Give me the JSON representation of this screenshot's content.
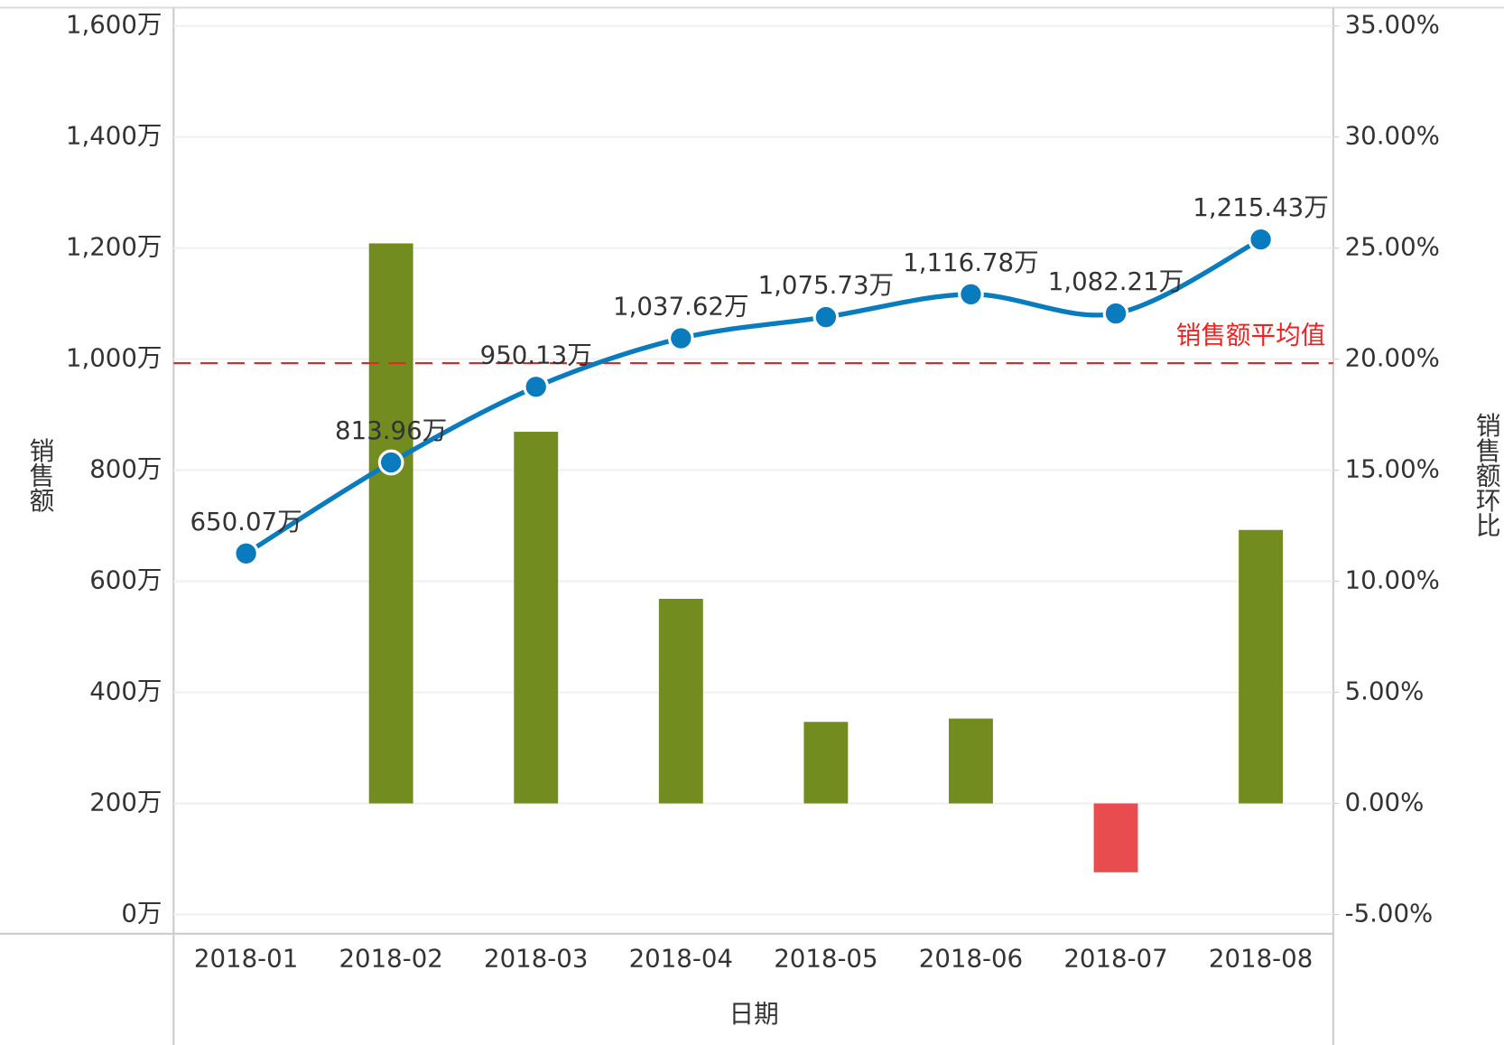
{
  "chart_data": {
    "type": "bar_line_dual_axis",
    "x_label": "日期",
    "y_label": "销售额",
    "y2_label": "销售额环比",
    "categories": [
      "2018-01",
      "2018-02",
      "2018-03",
      "2018-04",
      "2018-05",
      "2018-06",
      "2018-07",
      "2018-08"
    ],
    "series": [
      {
        "name": "销售额",
        "type": "line",
        "color": "#0a7bbd",
        "axis": "y",
        "values": [
          650.07,
          813.96,
          950.13,
          1037.62,
          1075.73,
          1116.78,
          1082.21,
          1215.43
        ],
        "value_labels": [
          "650.07万",
          "813.96万",
          "950.13万",
          "1,037.62万",
          "1,075.73万",
          "1,116.78万",
          "1,082.21万",
          "1,215.43万"
        ]
      },
      {
        "name": "销售额环比",
        "type": "bar",
        "color": "#728c1f",
        "negative_color": "#e84c4e",
        "axis": "y2",
        "values": [
          null,
          25.21,
          16.73,
          9.21,
          3.67,
          3.82,
          -3.1,
          12.31
        ]
      }
    ],
    "reference_line": {
      "label": "销售额平均值",
      "value": 992.74,
      "color": "#ee2222",
      "axis": "y"
    },
    "ylim": [
      0,
      1600
    ],
    "yticks": [
      {
        "value": 0,
        "label": "0万"
      },
      {
        "value": 200,
        "label": "200万"
      },
      {
        "value": 400,
        "label": "400万"
      },
      {
        "value": 600,
        "label": "600万"
      },
      {
        "value": 800,
        "label": "800万"
      },
      {
        "value": 1000,
        "label": "1,000万"
      },
      {
        "value": 1200,
        "label": "1,200万"
      },
      {
        "value": 1400,
        "label": "1,400万"
      },
      {
        "value": 1600,
        "label": "1,600万"
      }
    ],
    "y2lim": [
      -5,
      35
    ],
    "y2ticks": [
      {
        "value": -5,
        "label": "-5.00%"
      },
      {
        "value": 0,
        "label": "0.00%"
      },
      {
        "value": 5,
        "label": "5.00%"
      },
      {
        "value": 10,
        "label": "10.00%"
      },
      {
        "value": 15,
        "label": "15.00%"
      },
      {
        "value": 20,
        "label": "20.00%"
      },
      {
        "value": 25,
        "label": "25.00%"
      },
      {
        "value": 30,
        "label": "30.00%"
      },
      {
        "value": 35,
        "label": "35.00%"
      }
    ],
    "grid": true
  }
}
